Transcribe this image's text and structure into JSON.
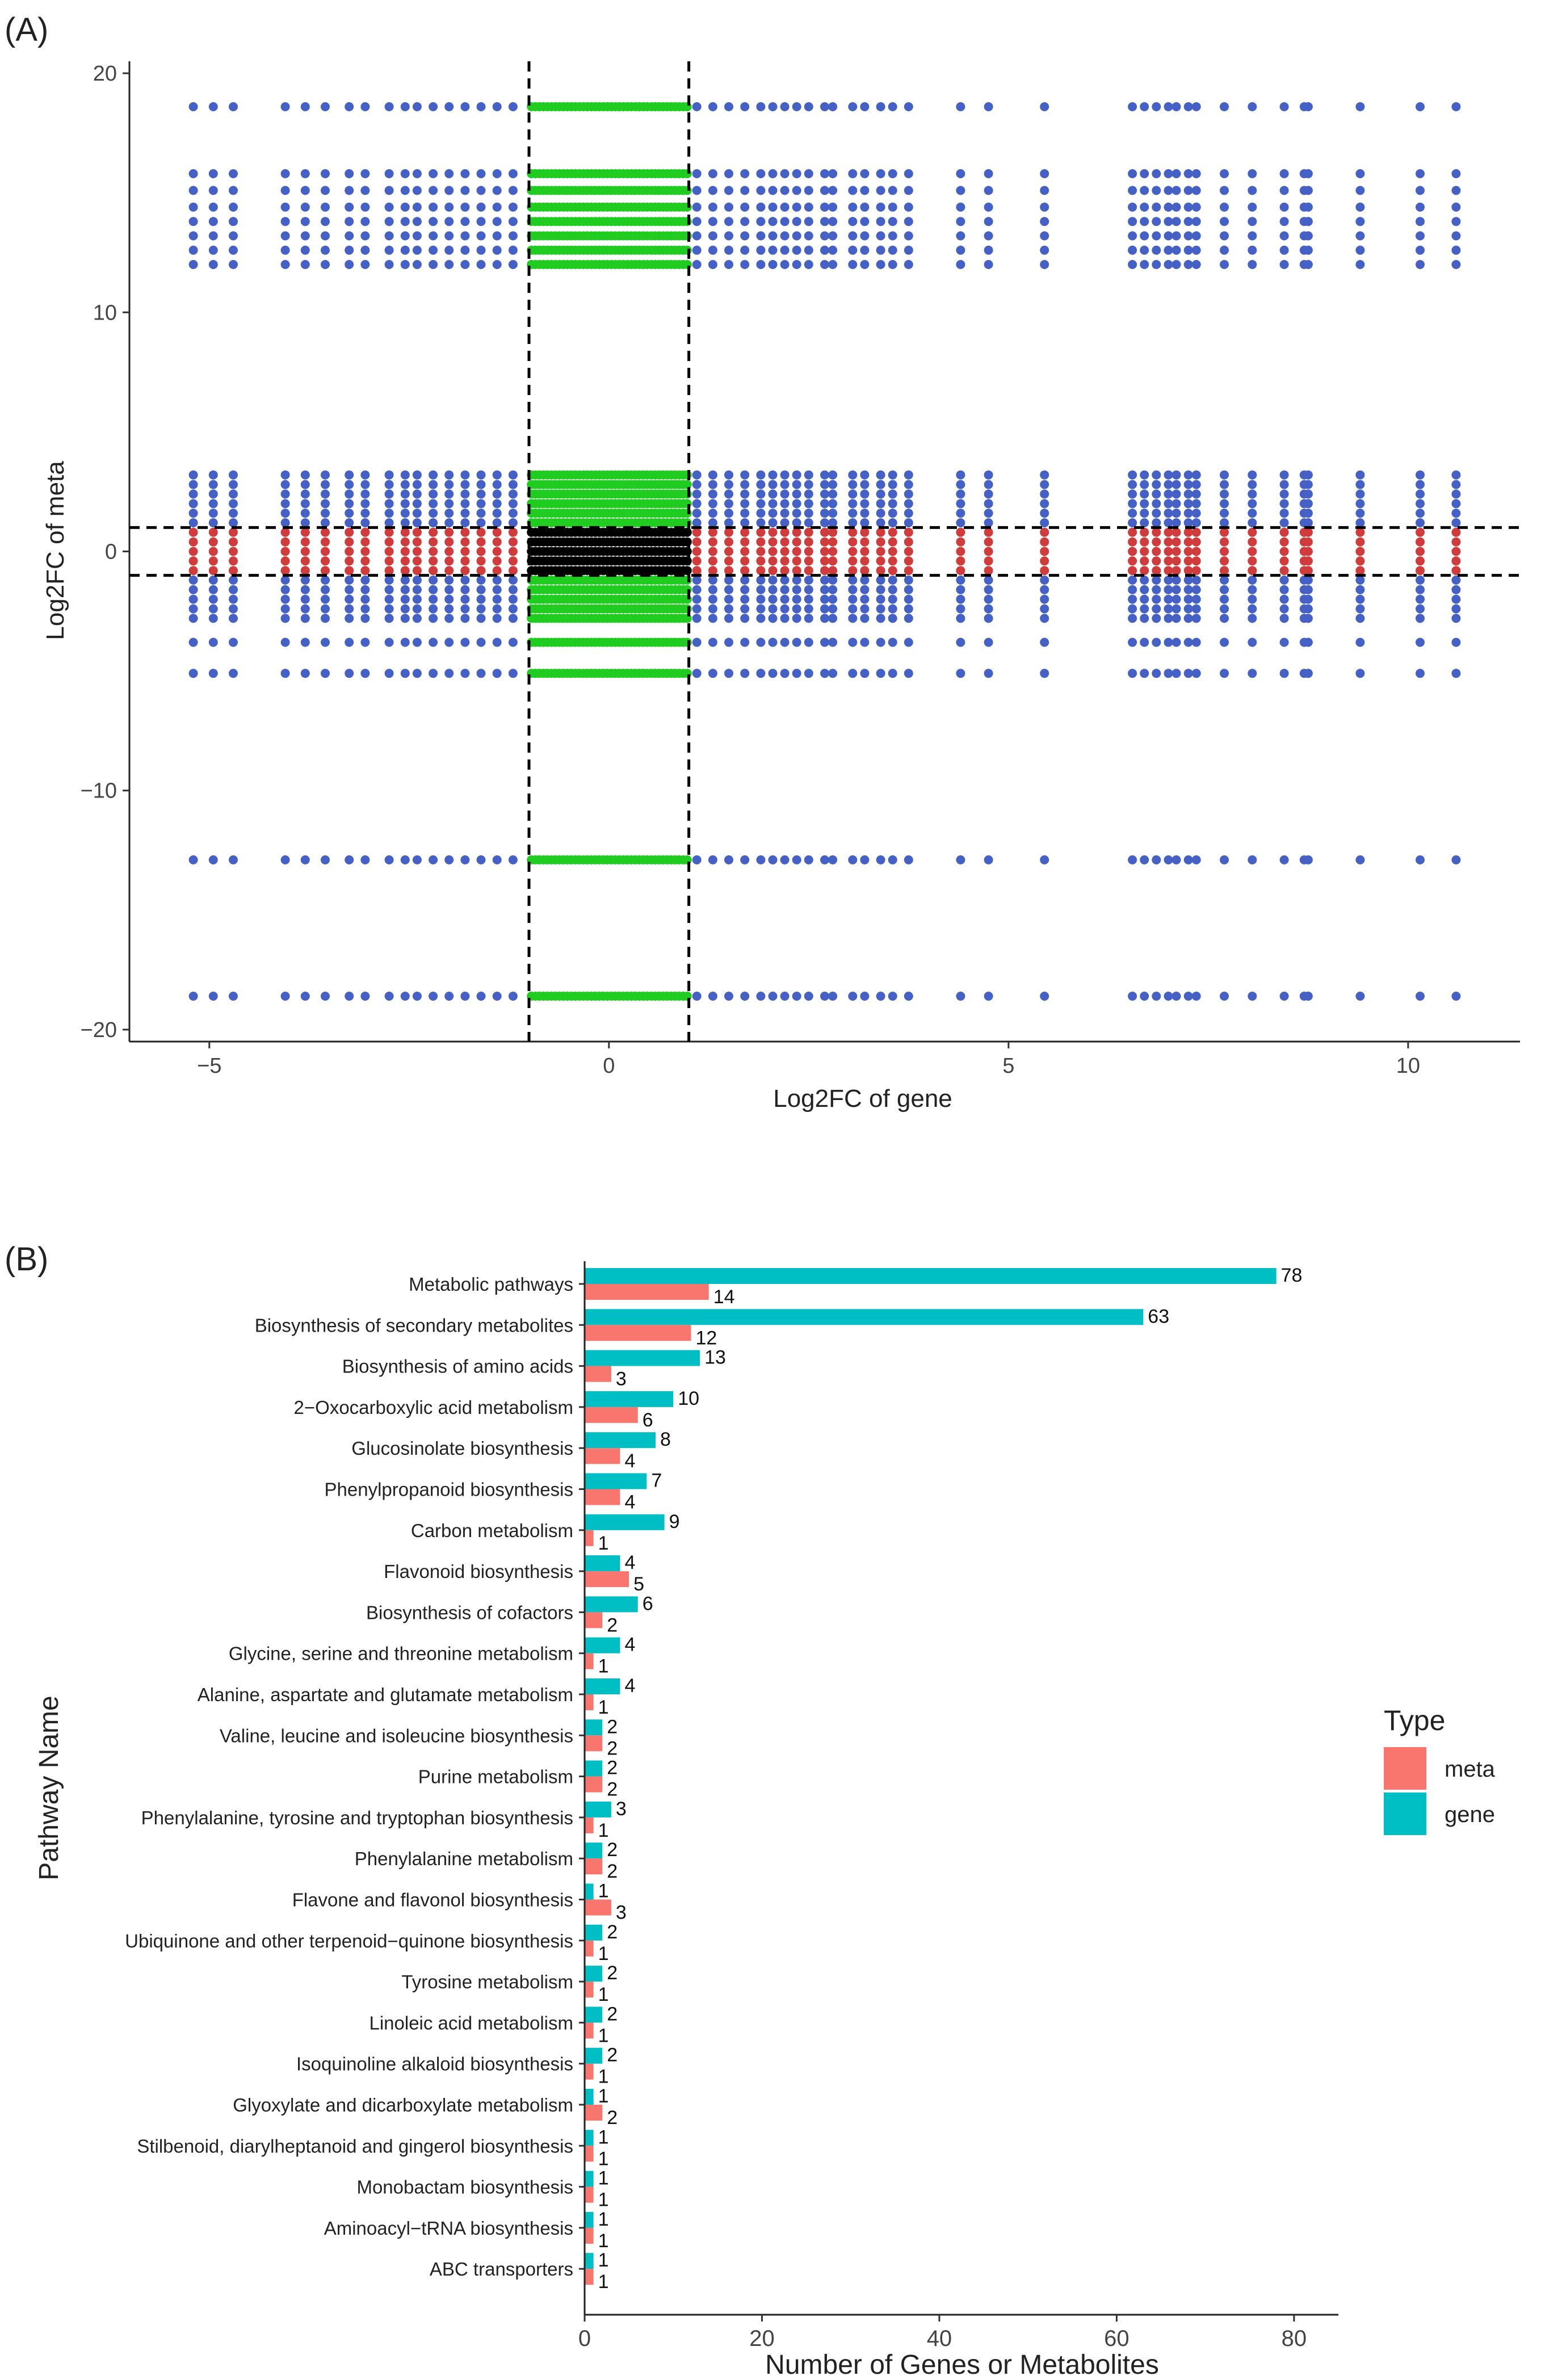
{
  "panels": {
    "a_label": "(A)",
    "b_label": "(B)"
  },
  "colors": {
    "blue": "#4561c6",
    "green": "#1fcc1f",
    "red": "#d03c3c",
    "black": "#000000",
    "meta": "#f8766d",
    "gene": "#00bfc4"
  },
  "chart_data": [
    {
      "type": "scatter",
      "xlabel": "Log2FC of gene",
      "ylabel": "Log2FC of meta",
      "xlim": [
        -6.0,
        11.4
      ],
      "ylim": [
        -20.5,
        20.5
      ],
      "xticks": [
        -5,
        0,
        5,
        10
      ],
      "yticks": [
        -20,
        -10,
        0,
        10,
        20
      ],
      "xtick_labels": [
        "−5",
        "0",
        "5",
        "10"
      ],
      "ytick_labels": [
        "−20",
        "−10",
        "0",
        "10",
        "20"
      ],
      "thresholds": {
        "x": [
          -1,
          1
        ],
        "y": [
          -1,
          1
        ]
      },
      "color_rules": {
        "within_x_within_y": "black",
        "within_x_outside_y": "green",
        "outside_x_within_y": "red",
        "outside_x_outside_y": "blue"
      },
      "gene_log2fc_columns": [
        -5.2,
        -4.95,
        -4.7,
        -4.05,
        -3.8,
        -3.55,
        -3.25,
        -3.05,
        -2.75,
        -2.55,
        -2.4,
        -2.2,
        -2.0,
        -1.8,
        -1.6,
        -1.4,
        -1.2,
        1.1,
        1.3,
        1.5,
        1.7,
        1.9,
        2.05,
        2.2,
        2.35,
        2.5,
        2.7,
        2.8,
        3.05,
        3.2,
        3.4,
        3.55,
        3.75,
        4.4,
        4.75,
        5.45,
        6.55,
        6.7,
        6.85,
        7.0,
        7.1,
        7.25,
        7.35,
        7.7,
        8.05,
        8.45,
        8.7,
        8.75,
        9.4,
        10.15,
        10.6
      ],
      "meta_log2fc_rows": [
        18.6,
        15.8,
        15.1,
        14.4,
        13.8,
        13.2,
        12.6,
        12.0,
        3.2,
        2.8,
        2.4,
        2.0,
        1.6,
        1.2,
        0.8,
        0.4,
        0.0,
        -0.4,
        -0.8,
        -1.2,
        -1.6,
        -2.0,
        -2.4,
        -2.8,
        -3.8,
        -5.1,
        -12.9,
        -18.6
      ],
      "center_x_range": [
        -1,
        1
      ]
    },
    {
      "type": "bar",
      "orientation": "horizontal",
      "xlabel": "Number of Genes or Metabolites",
      "ylabel": "Pathway Name",
      "xlim": [
        0,
        85
      ],
      "xticks": [
        0,
        20,
        40,
        60,
        80
      ],
      "legend_title": "Type",
      "legend_position": "right",
      "categories": [
        "Metabolic pathways",
        "Biosynthesis of secondary metabolites",
        "Biosynthesis of amino acids",
        "2−Oxocarboxylic acid metabolism",
        "Glucosinolate biosynthesis",
        "Phenylpropanoid biosynthesis",
        "Carbon metabolism",
        "Flavonoid biosynthesis",
        "Biosynthesis of cofactors",
        "Glycine, serine and threonine metabolism",
        "Alanine, aspartate and glutamate metabolism",
        "Valine, leucine and isoleucine biosynthesis",
        "Purine metabolism",
        "Phenylalanine, tyrosine and tryptophan biosynthesis",
        "Phenylalanine metabolism",
        "Flavone and flavonol biosynthesis",
        "Ubiquinone and other terpenoid−quinone biosynthesis",
        "Tyrosine metabolism",
        "Linoleic acid metabolism",
        "Isoquinoline alkaloid biosynthesis",
        "Glyoxylate and dicarboxylate metabolism",
        "Stilbenoid, diarylheptanoid and gingerol biosynthesis",
        "Monobactam biosynthesis",
        "Aminoacyl−tRNA biosynthesis",
        "ABC transporters"
      ],
      "series": [
        {
          "name": "meta",
          "values": [
            14,
            12,
            3,
            6,
            4,
            4,
            1,
            5,
            2,
            1,
            1,
            2,
            2,
            1,
            2,
            3,
            1,
            1,
            1,
            1,
            2,
            1,
            1,
            1,
            1
          ]
        },
        {
          "name": "gene",
          "values": [
            78,
            63,
            13,
            10,
            8,
            7,
            9,
            4,
            6,
            4,
            4,
            2,
            2,
            3,
            2,
            1,
            2,
            2,
            2,
            2,
            1,
            1,
            1,
            1,
            1
          ]
        }
      ]
    }
  ]
}
